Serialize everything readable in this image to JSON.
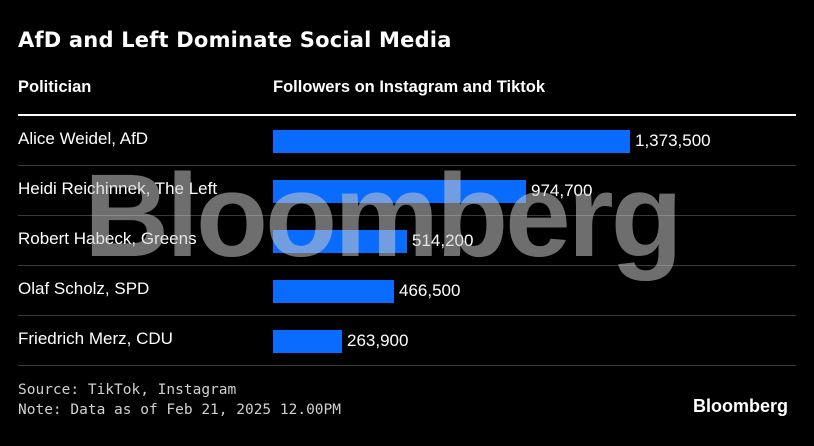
{
  "chart_data": {
    "type": "bar",
    "orientation": "horizontal",
    "title": "AfD and Left Dominate Social Media",
    "column_headers": [
      "Politician",
      "Followers on Instagram and Tiktok"
    ],
    "categories": [
      "Alice Weidel, AfD",
      "Heidi Reichinnek, The Left",
      "Robert Habeck, Greens",
      "Olaf Scholz, SPD",
      "Friedrich Merz, CDU"
    ],
    "values": [
      1373500,
      974700,
      514200,
      466500,
      263900
    ],
    "value_labels": [
      "1,373,500",
      "974,700",
      "514,200",
      "466,500",
      "263,900"
    ],
    "xlim": [
      0,
      1373500
    ],
    "bar_color": "#0a6cff",
    "grid": false
  },
  "source": "Source: TikTok, Instagram",
  "note": "Note: Data as of Feb 21, 2025 12.00PM",
  "watermark": "Bloomberg",
  "logo": "Bloomberg"
}
